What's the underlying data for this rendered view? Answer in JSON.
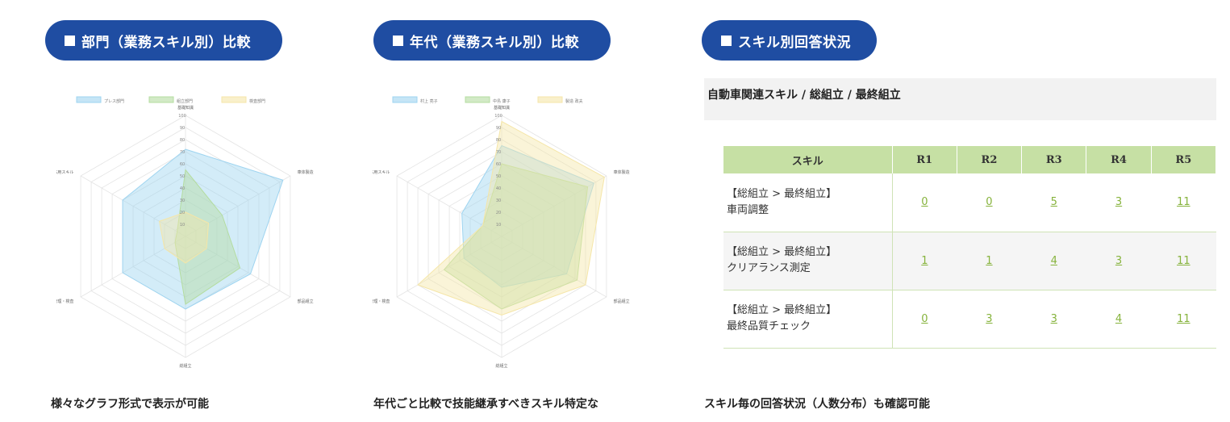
{
  "pills": {
    "dept": "部門（業務スキル別）比較",
    "age": "年代（業務スキル別）比較",
    "skill": "スキル別回答状況"
  },
  "charts": {
    "dept": {
      "legend": [
        "プレス部門",
        "組立部門",
        "検査部門"
      ],
      "colors": [
        "#9ed4f0",
        "#b4dca0",
        "#f5e6a8"
      ],
      "axes": [
        "基礎知識",
        "車体製造",
        "部品組立",
        "総組立",
        "品質管理・検査",
        "応用スキル"
      ],
      "ticks": [
        "10",
        "20",
        "30",
        "40",
        "50",
        "60",
        "70",
        "80",
        "90",
        "100"
      ],
      "series": [
        [
          72,
          93,
          62,
          60,
          60,
          60
        ],
        [
          55,
          35,
          52,
          56,
          10,
          8
        ],
        [
          20,
          22,
          20,
          22,
          20,
          25
        ]
      ]
    },
    "age": {
      "legend": [
        "村上 亮子",
        "中島 康子",
        "製造 政夫"
      ],
      "colors": [
        "#9ed4f0",
        "#b4dca0",
        "#f5e6a8"
      ],
      "axes": [
        "基礎知識",
        "車体製造",
        "部品組立",
        "総組立",
        "品質管理・検査",
        "応用スキル"
      ],
      "ticks": [
        "10",
        "20",
        "30",
        "40",
        "50",
        "60",
        "70",
        "80",
        "90",
        "100"
      ],
      "series": [
        [
          75,
          88,
          62,
          42,
          36,
          38
        ],
        [
          60,
          82,
          72,
          60,
          55,
          18
        ],
        [
          95,
          98,
          80,
          65,
          80,
          18
        ]
      ]
    }
  },
  "section_title": "自動車関連スキル / 総組立 / 最終組立",
  "table": {
    "headers": [
      "スキル",
      "R1",
      "R2",
      "R3",
      "R4",
      "R5"
    ],
    "rows": [
      {
        "path": "【総組立 > 最終組立】",
        "name": "車両調整",
        "values": [
          "0",
          "0",
          "5",
          "3",
          "11"
        ]
      },
      {
        "path": "【総組立 > 最終組立】",
        "name": "クリアランス測定",
        "values": [
          "1",
          "1",
          "4",
          "3",
          "11"
        ]
      },
      {
        "path": "【総組立 > 最終組立】",
        "name": "最終品質チェック",
        "values": [
          "0",
          "3",
          "3",
          "4",
          "11"
        ]
      }
    ]
  },
  "captions": {
    "dept": "様々なグラフ形式で表示が可能",
    "age": "年代ごと比較で技能継承すべきスキル特定な",
    "skill": "スキル毎の回答状況（人数分布）も確認可能"
  }
}
